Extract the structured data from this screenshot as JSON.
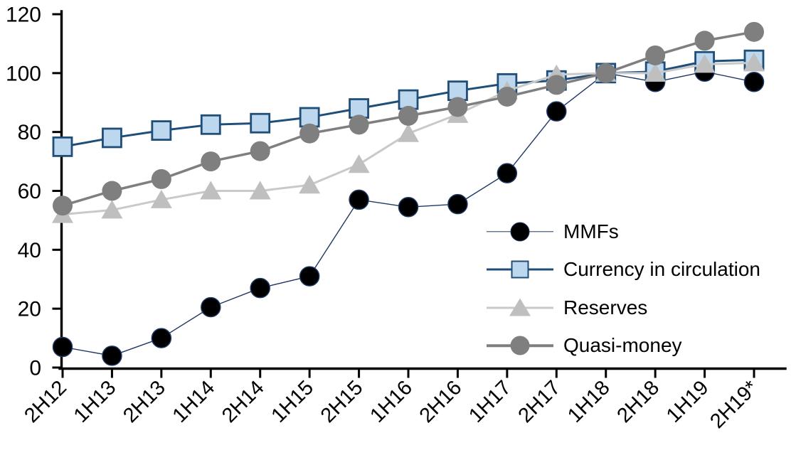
{
  "chart_data": {
    "type": "line",
    "title": "",
    "xlabel": "",
    "ylabel": "",
    "grid": false,
    "background": "#FFFFFF",
    "categories": [
      "2H12",
      "1H13",
      "2H13",
      "1H14",
      "2H14",
      "1H15",
      "2H15",
      "1H16",
      "2H16",
      "1H17",
      "2H17",
      "1H18",
      "2H18",
      "1H19",
      "2H19*"
    ],
    "series": [
      {
        "name": "MMFs",
        "marker": "circle",
        "values": [
          7,
          4,
          10,
          20.5,
          27,
          31,
          57,
          54.5,
          55.5,
          66,
          87,
          100,
          97,
          100.5,
          97
        ],
        "line_color": "#1F3864",
        "line_width": 1.4,
        "marker_fill": "#000000",
        "marker_stroke": "#1F3864",
        "marker_stroke_width": 1.5,
        "marker_size": 27
      },
      {
        "name": "Currency in circulation",
        "marker": "square",
        "values": [
          75,
          78,
          80.5,
          82.5,
          83,
          85,
          88,
          91,
          94,
          96.5,
          97.5,
          100,
          100.5,
          104,
          104.5
        ],
        "line_color": "#1F4E79",
        "line_width": 3,
        "marker_fill": "#BDD7EE",
        "marker_stroke": "#1F4E79",
        "marker_stroke_width": 2.8,
        "marker_size": 26
      },
      {
        "name": "Reserves",
        "marker": "triangle",
        "values": [
          52,
          53.5,
          57,
          60,
          60,
          62,
          69,
          79.5,
          86,
          94,
          99.5,
          100,
          100,
          103,
          103.5
        ],
        "line_color": "#C9C9C9",
        "line_width": 3,
        "marker_fill": "#BFBFBF",
        "marker_stroke": "none",
        "marker_stroke_width": 0,
        "marker_size": 30
      },
      {
        "name": "Quasi-money",
        "marker": "circle",
        "values": [
          55,
          60,
          64,
          70,
          73.5,
          79.5,
          82.5,
          85.5,
          88.5,
          92,
          96,
          100,
          106,
          111,
          114
        ],
        "line_color": "#7F7F7F",
        "line_width": 3.5,
        "marker_fill": "#7F7F7F",
        "marker_stroke": "none",
        "marker_stroke_width": 0,
        "marker_size": 28
      }
    ],
    "y_axis": {
      "min": 0,
      "max": 120,
      "step": 20,
      "tick_labels": [
        "0",
        "20",
        "40",
        "60",
        "80",
        "100",
        "120"
      ]
    },
    "x_axis": {
      "label_rotation": -45
    },
    "legend": {
      "position": "inside-right",
      "items": [
        "MMFs",
        "Currency in circulation",
        "Reserves",
        "Quasi-money"
      ]
    },
    "axis_color": "#000000"
  }
}
